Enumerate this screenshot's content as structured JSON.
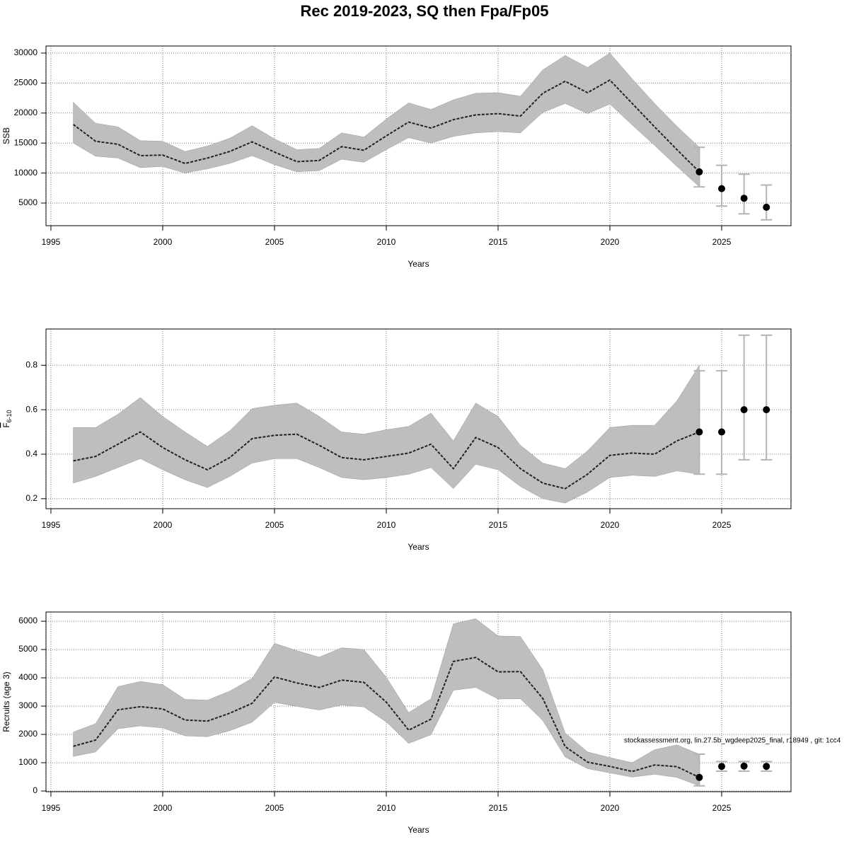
{
  "title": "Rec 2019-2023, SQ then Fpa/Fp05",
  "annotation": "stockassessment.org, lin.27.5b_wgdeep2025_final, r18949 , git: 1cc4",
  "chart_data": [
    {
      "type": "line",
      "xlabel": "Years",
      "ylabel": "SSB",
      "x": [
        1996,
        1997,
        1998,
        1999,
        2000,
        2001,
        2002,
        2003,
        2004,
        2005,
        2006,
        2007,
        2008,
        2009,
        2010,
        2011,
        2012,
        2013,
        2014,
        2015,
        2016,
        2017,
        2018,
        2019,
        2020,
        2021,
        2022,
        2023,
        2024
      ],
      "values": [
        18100,
        15300,
        14800,
        12900,
        13000,
        11600,
        12500,
        13600,
        15200,
        13500,
        11900,
        12100,
        14400,
        13800,
        16200,
        18500,
        17500,
        18900,
        19700,
        19900,
        19500,
        23300,
        25300,
        23400,
        25500,
        21600,
        17700,
        13900,
        10200
      ],
      "lower": [
        15000,
        12800,
        12500,
        10900,
        11100,
        10000,
        10700,
        11600,
        12900,
        11400,
        10200,
        10400,
        12300,
        11800,
        13900,
        15900,
        15000,
        16100,
        16700,
        16900,
        16700,
        20100,
        21600,
        19900,
        21500,
        18000,
        14600,
        11100,
        7700
      ],
      "upper": [
        21800,
        18300,
        17700,
        15400,
        15300,
        13600,
        14500,
        15800,
        17900,
        15700,
        13900,
        14100,
        16700,
        16000,
        19000,
        21700,
        20600,
        22200,
        23300,
        23400,
        22800,
        27200,
        29600,
        27600,
        30000,
        25700,
        21600,
        17800,
        14300
      ],
      "projection": {
        "x": [
          2024,
          2025,
          2026,
          2027
        ],
        "values": [
          10200,
          7400,
          5800,
          4300
        ],
        "lower": [
          7700,
          4500,
          3200,
          2200
        ],
        "upper": [
          14300,
          11300,
          9800,
          8000
        ]
      },
      "color": "#222222",
      "band_color": "#bebebe",
      "errorbar_color": "#b4b4b4",
      "xlim": [
        1994.78,
        2028.1
      ],
      "xticks": [
        1995,
        2000,
        2005,
        2010,
        2015,
        2020,
        2025
      ],
      "ylim": [
        1226,
        31180
      ],
      "yticks": [
        5000,
        10000,
        15000,
        20000,
        25000,
        30000
      ],
      "grid": true
    },
    {
      "type": "line",
      "xlabel": "Years",
      "ylabel": "F",
      "ylabel_subscript": "6-10",
      "x": [
        1996,
        1997,
        1998,
        1999,
        2000,
        2001,
        2002,
        2003,
        2004,
        2005,
        2006,
        2007,
        2008,
        2009,
        2010,
        2011,
        2012,
        2013,
        2014,
        2015,
        2016,
        2017,
        2018,
        2019,
        2020,
        2021,
        2022,
        2023,
        2024
      ],
      "values": [
        0.37,
        0.39,
        0.445,
        0.5,
        0.43,
        0.375,
        0.33,
        0.385,
        0.47,
        0.485,
        0.49,
        0.44,
        0.385,
        0.375,
        0.39,
        0.405,
        0.445,
        0.335,
        0.475,
        0.43,
        0.335,
        0.27,
        0.245,
        0.31,
        0.395,
        0.405,
        0.4,
        0.46,
        0.5
      ],
      "lower": [
        0.27,
        0.3,
        0.34,
        0.38,
        0.33,
        0.285,
        0.25,
        0.3,
        0.36,
        0.38,
        0.38,
        0.34,
        0.295,
        0.285,
        0.295,
        0.31,
        0.34,
        0.245,
        0.355,
        0.33,
        0.255,
        0.2,
        0.18,
        0.23,
        0.295,
        0.305,
        0.3,
        0.325,
        0.31
      ],
      "upper": [
        0.52,
        0.52,
        0.58,
        0.655,
        0.57,
        0.5,
        0.435,
        0.505,
        0.605,
        0.62,
        0.63,
        0.57,
        0.5,
        0.49,
        0.51,
        0.525,
        0.585,
        0.46,
        0.63,
        0.57,
        0.44,
        0.36,
        0.335,
        0.415,
        0.52,
        0.53,
        0.53,
        0.64,
        0.8
      ],
      "projection": {
        "x": [
          2024,
          2025,
          2026,
          2027
        ],
        "values": [
          0.5,
          0.5,
          0.6,
          0.6
        ],
        "lower": [
          0.31,
          0.31,
          0.375,
          0.375
        ],
        "upper": [
          0.775,
          0.775,
          0.935,
          0.935
        ]
      },
      "color": "#222222",
      "band_color": "#bebebe",
      "errorbar_color": "#b4b4b4",
      "xlim": [
        1994.78,
        2028.1
      ],
      "xticks": [
        1995,
        2000,
        2005,
        2010,
        2015,
        2020,
        2025
      ],
      "ylim": [
        0.155,
        0.963
      ],
      "yticks": [
        0.2,
        0.4,
        0.6,
        0.8
      ],
      "grid": true
    },
    {
      "type": "line",
      "xlabel": "Years",
      "ylabel": "Recruits (age 3)",
      "x": [
        1996,
        1997,
        1998,
        1999,
        2000,
        2001,
        2002,
        2003,
        2004,
        2005,
        2006,
        2007,
        2008,
        2009,
        2010,
        2011,
        2012,
        2013,
        2014,
        2015,
        2016,
        2017,
        2018,
        2019,
        2020,
        2021,
        2022,
        2023,
        2024
      ],
      "values": [
        1580,
        1800,
        2870,
        2980,
        2900,
        2510,
        2470,
        2750,
        3100,
        4030,
        3820,
        3660,
        3920,
        3840,
        3140,
        2150,
        2540,
        4580,
        4720,
        4210,
        4220,
        3270,
        1570,
        1020,
        870,
        690,
        920,
        860,
        480
      ],
      "lower": [
        1220,
        1380,
        2200,
        2300,
        2230,
        1950,
        1920,
        2130,
        2430,
        3130,
        2990,
        2860,
        3040,
        2970,
        2440,
        1680,
        1990,
        3560,
        3660,
        3250,
        3260,
        2490,
        1200,
        790,
        640,
        490,
        590,
        480,
        180
      ],
      "upper": [
        2080,
        2380,
        3690,
        3870,
        3760,
        3240,
        3210,
        3530,
        3980,
        5220,
        4960,
        4730,
        5060,
        5000,
        4020,
        2770,
        3260,
        5910,
        6090,
        5480,
        5460,
        4290,
        2050,
        1380,
        1180,
        1000,
        1460,
        1630,
        1300
      ],
      "projection": {
        "x": [
          2024,
          2025,
          2026,
          2027
        ],
        "values": [
          480,
          870,
          880,
          870
        ],
        "lower": [
          180,
          700,
          700,
          700
        ],
        "upper": [
          1300,
          1040,
          1040,
          1040
        ]
      },
      "color": "#222222",
      "band_color": "#bebebe",
      "errorbar_color": "#b4b4b4",
      "xlim": [
        1994.78,
        2028.1
      ],
      "xticks": [
        1995,
        2000,
        2005,
        2010,
        2015,
        2020,
        2025
      ],
      "ylim": [
        -25,
        6327
      ],
      "yticks": [
        0,
        1000,
        2000,
        3000,
        4000,
        5000,
        6000
      ],
      "grid": true
    }
  ]
}
